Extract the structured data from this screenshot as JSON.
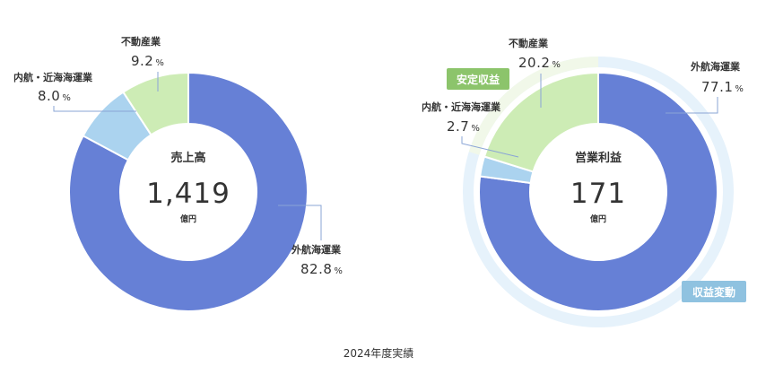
{
  "caption": "2024年度実績",
  "colors": {
    "ocean": "#6680d6",
    "coastal": "#abd3ef",
    "realestate": "#cdecb5",
    "stable_ring": "#f1f8e9",
    "volatile_ring": "#e6f2fb",
    "stable_badge": "#8cc46b",
    "volatile_badge": "#8fc2e0",
    "leader": "#8aa4d6"
  },
  "badges": {
    "stable": "安定収益",
    "volatile": "収益変動"
  },
  "chart_data": [
    {
      "type": "pie",
      "center_title": "売上高",
      "center_value": "1,419",
      "center_unit": "億円",
      "unit_symbol": "%",
      "slices": [
        {
          "label": "外航海運業",
          "value": 82.8,
          "color": "#6680d6"
        },
        {
          "label": "内航・近海海運業",
          "value": 8.0,
          "color": "#abd3ef"
        },
        {
          "label": "不動産業",
          "value": 9.2,
          "color": "#cdecb5"
        }
      ]
    },
    {
      "type": "pie",
      "center_title": "営業利益",
      "center_value": "171",
      "center_unit": "億円",
      "unit_symbol": "%",
      "slices": [
        {
          "label": "外航海運業",
          "value": 77.1,
          "color": "#6680d6"
        },
        {
          "label": "内航・近海海運業",
          "value": 2.7,
          "color": "#abd3ef"
        },
        {
          "label": "不動産業",
          "value": 20.2,
          "color": "#cdecb5"
        }
      ]
    }
  ]
}
